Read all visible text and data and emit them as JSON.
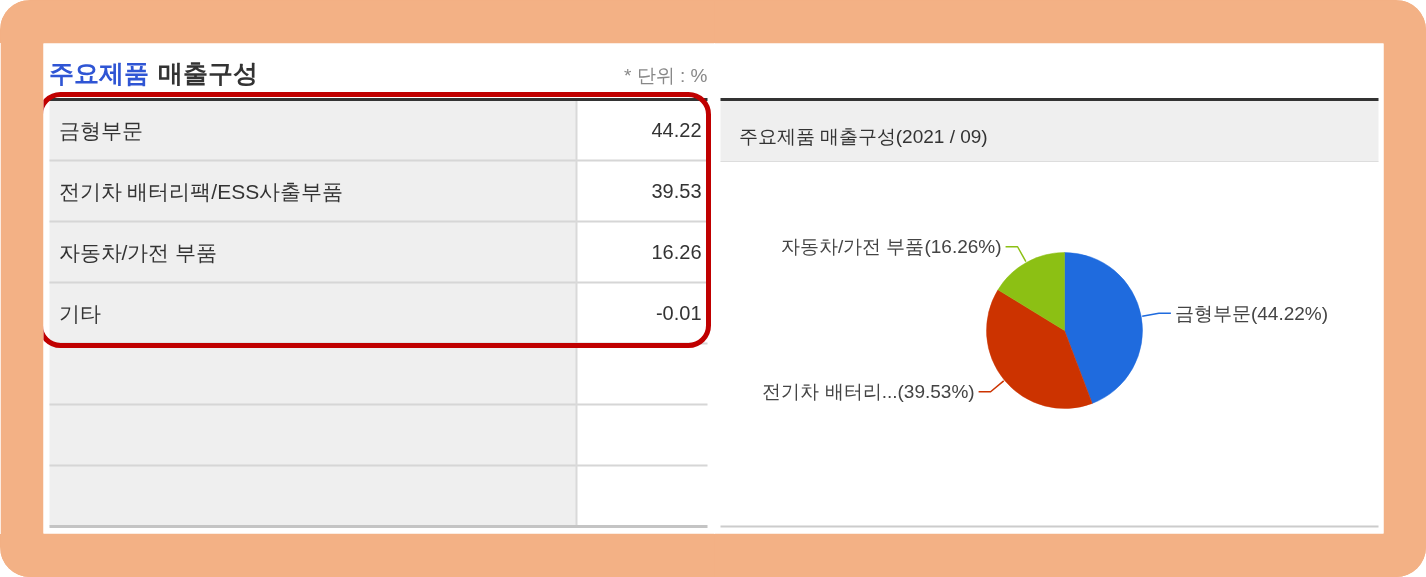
{
  "chart_data": [
    {
      "type": "other",
      "title": "주요제품 매출구성",
      "annotations": [
        "* 단위 : %"
      ],
      "categories": [
        "금형부문",
        "전기차 배터리팩/ESS사출부품",
        "자동차/가전 부품",
        "기타",
        null,
        null,
        null
      ],
      "values": [
        44.22,
        39.53,
        16.26,
        -0.01,
        null,
        null,
        null
      ],
      "data_labels": true
    },
    {
      "type": "pie",
      "title": "주요제품 매출구성(2021 / 09)",
      "categories": [
        "금형부문",
        "전기차 배터리...",
        "자동차/가전 부품"
      ],
      "values": [
        44.22,
        39.53,
        16.26
      ],
      "colors": [
        "#1f6bde",
        "#cc3300",
        "#8cc014"
      ],
      "value_labels": [
        "(44.22%)",
        "(39.53%)",
        "(16.26%)"
      ]
    }
  ]
}
